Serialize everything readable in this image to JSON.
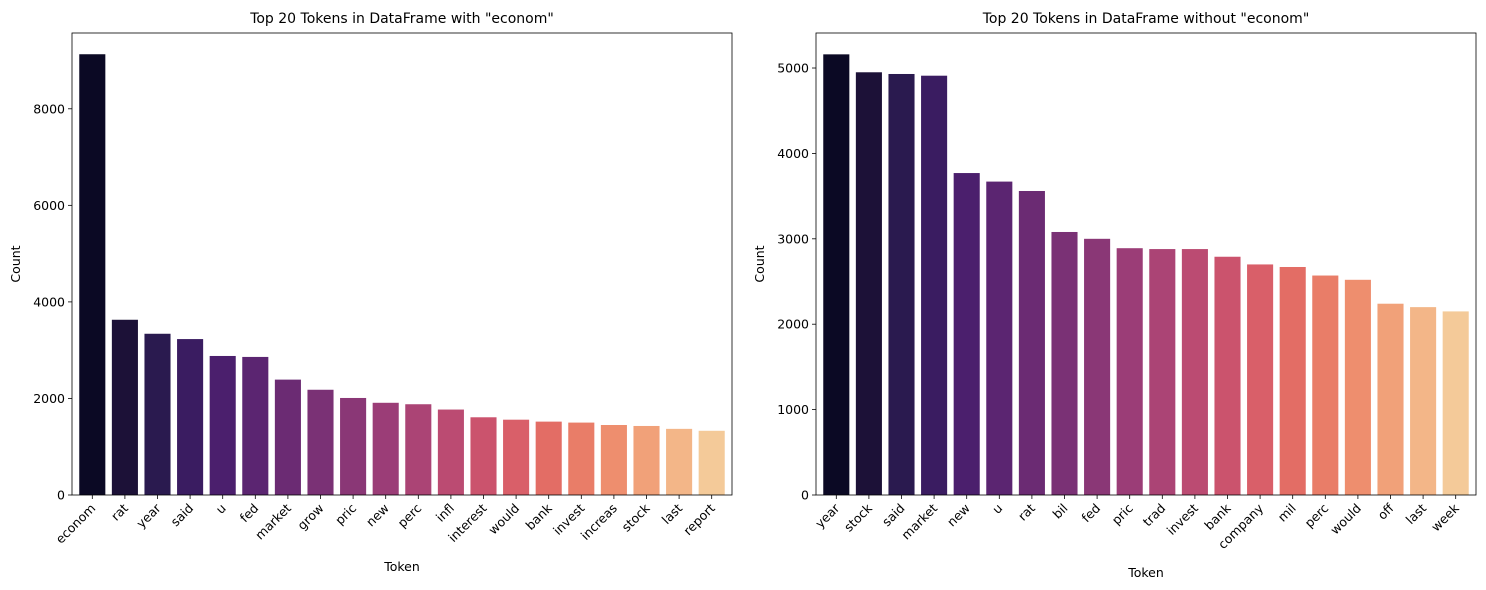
{
  "chart_data": [
    {
      "type": "bar",
      "title": "Top 20 Tokens in DataFrame with \"econom\"",
      "xlabel": "Token",
      "ylabel": "Count",
      "ylim": [
        0,
        9570
      ],
      "yticks": [
        0,
        2000,
        4000,
        6000,
        8000
      ],
      "grid": false,
      "categories": [
        "econom",
        "rat",
        "year",
        "said",
        "u",
        "fed",
        "market",
        "grow",
        "pric",
        "new",
        "perc",
        "infl",
        "interest",
        "would",
        "bank",
        "invest",
        "increas",
        "stock",
        "last",
        "report"
      ],
      "values": [
        9130,
        3630,
        3340,
        3230,
        2880,
        2860,
        2390,
        2180,
        2010,
        1910,
        1880,
        1770,
        1610,
        1560,
        1520,
        1500,
        1450,
        1430,
        1370,
        1330
      ]
    },
    {
      "type": "bar",
      "title": "Top 20 Tokens in DataFrame without \"econom\"",
      "xlabel": "Token",
      "ylabel": "Count",
      "ylim": [
        0,
        5410
      ],
      "yticks": [
        0,
        1000,
        2000,
        3000,
        4000,
        5000
      ],
      "grid": false,
      "categories": [
        "year",
        "stock",
        "said",
        "market",
        "new",
        "u",
        "rat",
        "bil",
        "fed",
        "pric",
        "trad",
        "invest",
        "bank",
        "company",
        "mil",
        "perc",
        "would",
        "off",
        "last",
        "week"
      ],
      "values": [
        5160,
        4950,
        4930,
        4910,
        3770,
        3670,
        3560,
        3080,
        3000,
        2890,
        2880,
        2880,
        2790,
        2700,
        2670,
        2570,
        2520,
        2240,
        2200,
        2150
      ]
    }
  ],
  "palette": [
    "#0b0924",
    "#1c1137",
    "#2a1a4f",
    "#3a1c61",
    "#4b1f6d",
    "#5b2571",
    "#6b2b73",
    "#7a3175",
    "#8a3776",
    "#9b3d77",
    "#ab4475",
    "#bb4b72",
    "#cb536d",
    "#d95f69",
    "#e36d65",
    "#e97d68",
    "#ee8e6e",
    "#f1a179",
    "#f3b688",
    "#f4ca99",
    "#f5dca8"
  ]
}
